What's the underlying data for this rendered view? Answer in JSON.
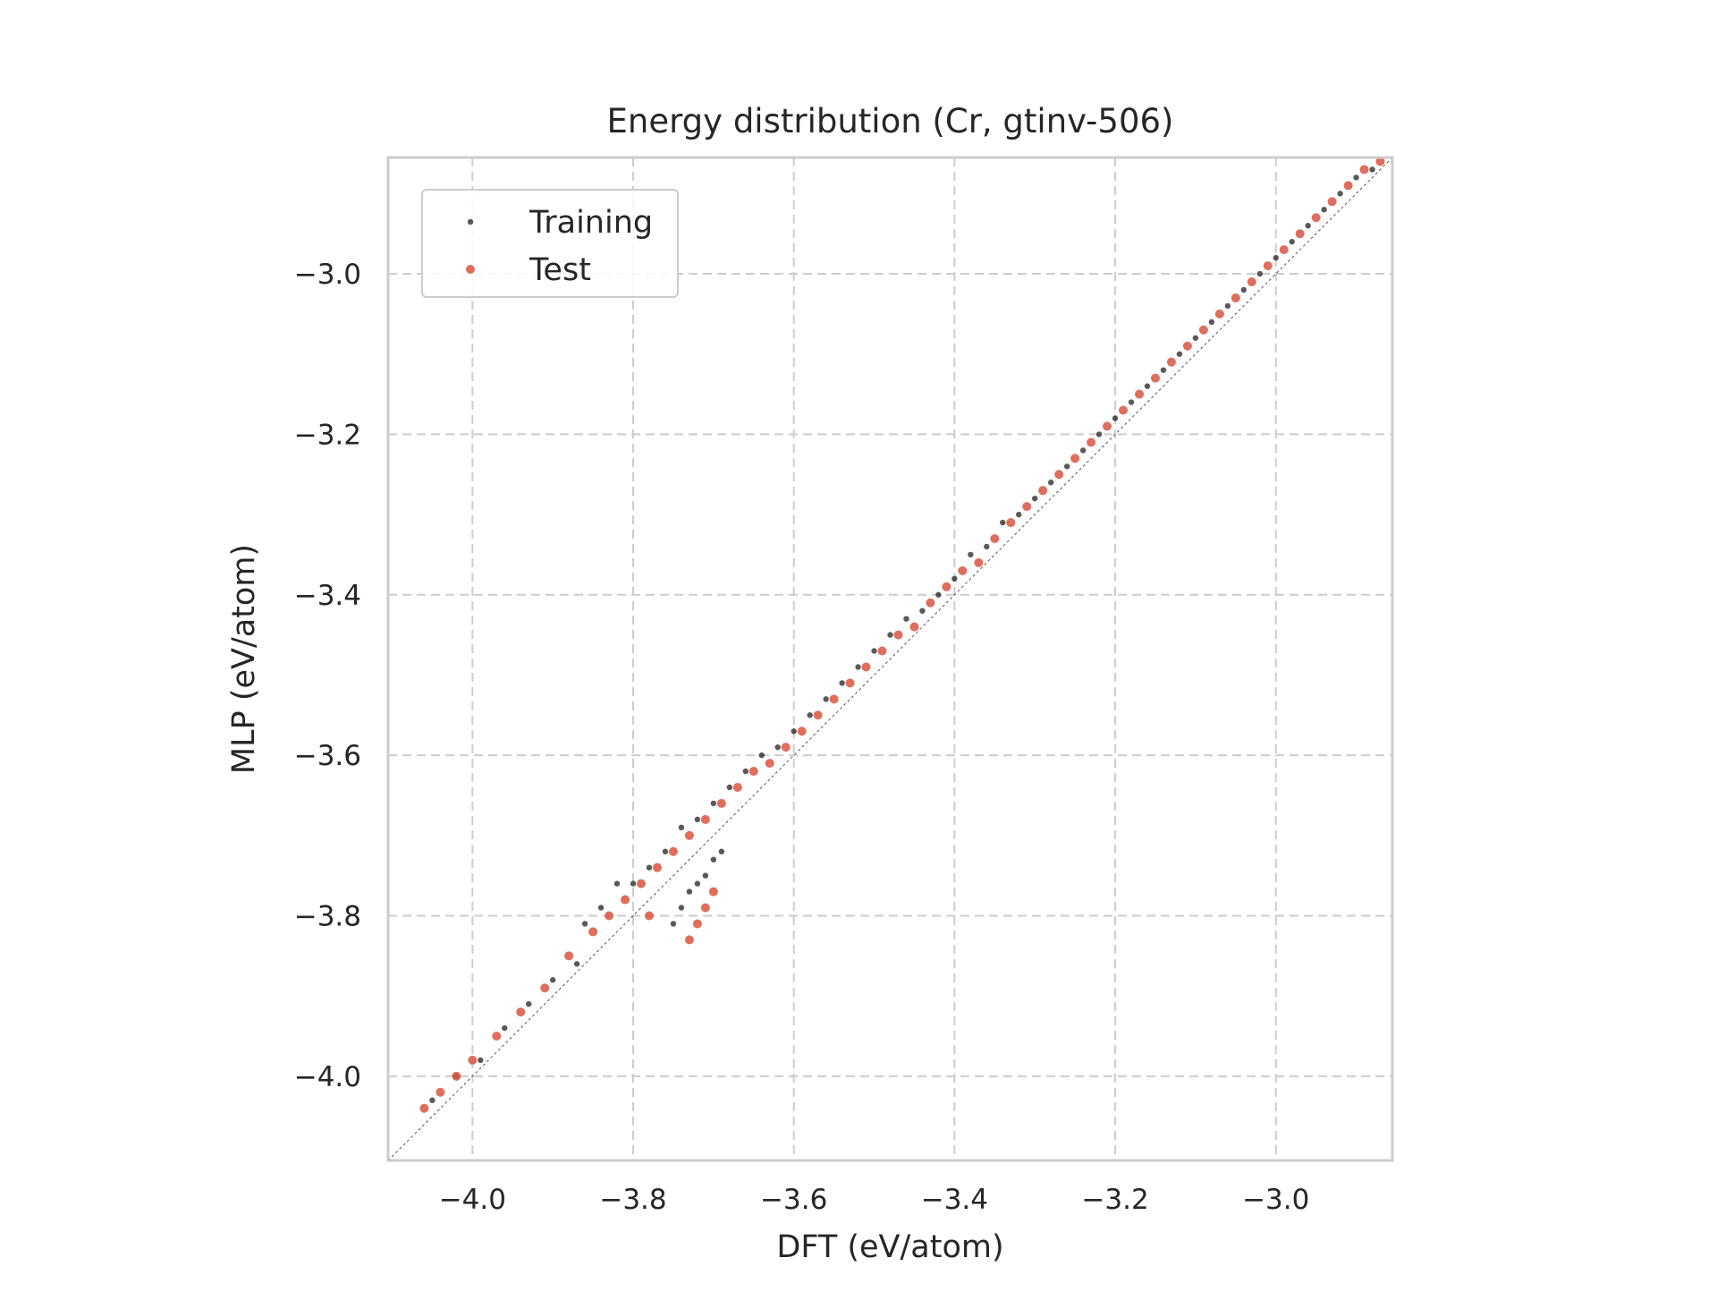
{
  "chart_data": {
    "type": "scatter",
    "title": "Energy distribution (Cr, gtinv-506)",
    "xlabel": "DFT (eV/atom)",
    "ylabel": "MLP (eV/atom)",
    "xlim": [
      -4.105,
      -2.855
    ],
    "ylim": [
      -4.105,
      -2.855
    ],
    "xticks": [
      -4.0,
      -3.8,
      -3.6,
      -3.4,
      -3.2,
      -3.0
    ],
    "yticks": [
      -4.0,
      -3.8,
      -3.6,
      -3.4,
      -3.2,
      -3.0
    ],
    "xtick_labels": [
      "−4.0",
      "−3.8",
      "−3.6",
      "−3.4",
      "−3.2",
      "−3.0"
    ],
    "ytick_labels": [
      "−4.0",
      "−3.8",
      "−3.6",
      "−3.4",
      "−3.2",
      "−3.0"
    ],
    "grid": true,
    "legend_position": "top-left",
    "reference_line": "y = x",
    "series": [
      {
        "name": "Training",
        "color": "#000000",
        "points": [
          [
            -4.05,
            -4.03
          ],
          [
            -4.02,
            -4.0
          ],
          [
            -3.99,
            -3.98
          ],
          [
            -3.96,
            -3.94
          ],
          [
            -3.93,
            -3.91
          ],
          [
            -3.9,
            -3.88
          ],
          [
            -3.87,
            -3.86
          ],
          [
            -3.86,
            -3.81
          ],
          [
            -3.84,
            -3.79
          ],
          [
            -3.82,
            -3.76
          ],
          [
            -3.8,
            -3.76
          ],
          [
            -3.78,
            -3.74
          ],
          [
            -3.76,
            -3.72
          ],
          [
            -3.74,
            -3.69
          ],
          [
            -3.72,
            -3.68
          ],
          [
            -3.7,
            -3.66
          ],
          [
            -3.68,
            -3.64
          ],
          [
            -3.66,
            -3.62
          ],
          [
            -3.64,
            -3.6
          ],
          [
            -3.62,
            -3.59
          ],
          [
            -3.6,
            -3.57
          ],
          [
            -3.58,
            -3.55
          ],
          [
            -3.56,
            -3.53
          ],
          [
            -3.54,
            -3.51
          ],
          [
            -3.52,
            -3.49
          ],
          [
            -3.5,
            -3.47
          ],
          [
            -3.48,
            -3.45
          ],
          [
            -3.46,
            -3.43
          ],
          [
            -3.44,
            -3.42
          ],
          [
            -3.42,
            -3.4
          ],
          [
            -3.4,
            -3.38
          ],
          [
            -3.38,
            -3.35
          ],
          [
            -3.36,
            -3.34
          ],
          [
            -3.34,
            -3.31
          ],
          [
            -3.32,
            -3.3
          ],
          [
            -3.3,
            -3.28
          ],
          [
            -3.28,
            -3.26
          ],
          [
            -3.26,
            -3.24
          ],
          [
            -3.24,
            -3.22
          ],
          [
            -3.22,
            -3.2
          ],
          [
            -3.2,
            -3.18
          ],
          [
            -3.18,
            -3.16
          ],
          [
            -3.16,
            -3.14
          ],
          [
            -3.14,
            -3.12
          ],
          [
            -3.12,
            -3.1
          ],
          [
            -3.1,
            -3.08
          ],
          [
            -3.08,
            -3.06
          ],
          [
            -3.06,
            -3.04
          ],
          [
            -3.04,
            -3.02
          ],
          [
            -3.02,
            -3.0
          ],
          [
            -3.0,
            -2.98
          ],
          [
            -2.98,
            -2.96
          ],
          [
            -2.96,
            -2.94
          ],
          [
            -2.94,
            -2.92
          ],
          [
            -2.92,
            -2.9
          ],
          [
            -2.9,
            -2.88
          ],
          [
            -2.88,
            -2.87
          ],
          [
            -3.75,
            -3.81
          ],
          [
            -3.74,
            -3.79
          ],
          [
            -3.73,
            -3.77
          ],
          [
            -3.72,
            -3.76
          ],
          [
            -3.71,
            -3.75
          ],
          [
            -3.7,
            -3.73
          ],
          [
            -3.69,
            -3.72
          ]
        ]
      },
      {
        "name": "Test",
        "color": "#d9553f",
        "points": [
          [
            -4.06,
            -4.04
          ],
          [
            -4.04,
            -4.02
          ],
          [
            -4.02,
            -4.0
          ],
          [
            -4.0,
            -3.98
          ],
          [
            -3.97,
            -3.95
          ],
          [
            -3.94,
            -3.92
          ],
          [
            -3.91,
            -3.89
          ],
          [
            -3.88,
            -3.85
          ],
          [
            -3.85,
            -3.82
          ],
          [
            -3.83,
            -3.8
          ],
          [
            -3.81,
            -3.78
          ],
          [
            -3.79,
            -3.76
          ],
          [
            -3.77,
            -3.74
          ],
          [
            -3.75,
            -3.72
          ],
          [
            -3.73,
            -3.7
          ],
          [
            -3.71,
            -3.68
          ],
          [
            -3.69,
            -3.66
          ],
          [
            -3.67,
            -3.64
          ],
          [
            -3.65,
            -3.62
          ],
          [
            -3.63,
            -3.61
          ],
          [
            -3.61,
            -3.59
          ],
          [
            -3.59,
            -3.57
          ],
          [
            -3.57,
            -3.55
          ],
          [
            -3.55,
            -3.53
          ],
          [
            -3.53,
            -3.51
          ],
          [
            -3.51,
            -3.49
          ],
          [
            -3.49,
            -3.47
          ],
          [
            -3.47,
            -3.45
          ],
          [
            -3.45,
            -3.44
          ],
          [
            -3.43,
            -3.41
          ],
          [
            -3.41,
            -3.39
          ],
          [
            -3.39,
            -3.37
          ],
          [
            -3.37,
            -3.36
          ],
          [
            -3.35,
            -3.33
          ],
          [
            -3.33,
            -3.31
          ],
          [
            -3.31,
            -3.29
          ],
          [
            -3.29,
            -3.27
          ],
          [
            -3.27,
            -3.25
          ],
          [
            -3.25,
            -3.23
          ],
          [
            -3.23,
            -3.21
          ],
          [
            -3.21,
            -3.19
          ],
          [
            -3.19,
            -3.17
          ],
          [
            -3.17,
            -3.15
          ],
          [
            -3.15,
            -3.13
          ],
          [
            -3.13,
            -3.11
          ],
          [
            -3.11,
            -3.09
          ],
          [
            -3.09,
            -3.07
          ],
          [
            -3.07,
            -3.05
          ],
          [
            -3.05,
            -3.03
          ],
          [
            -3.03,
            -3.01
          ],
          [
            -3.01,
            -2.99
          ],
          [
            -2.99,
            -2.97
          ],
          [
            -2.97,
            -2.95
          ],
          [
            -2.95,
            -2.93
          ],
          [
            -2.93,
            -2.91
          ],
          [
            -2.91,
            -2.89
          ],
          [
            -2.89,
            -2.87
          ],
          [
            -2.87,
            -2.86
          ],
          [
            -3.78,
            -3.8
          ],
          [
            -3.73,
            -3.83
          ],
          [
            -3.72,
            -3.81
          ],
          [
            -3.71,
            -3.79
          ],
          [
            -3.7,
            -3.77
          ]
        ]
      }
    ]
  }
}
